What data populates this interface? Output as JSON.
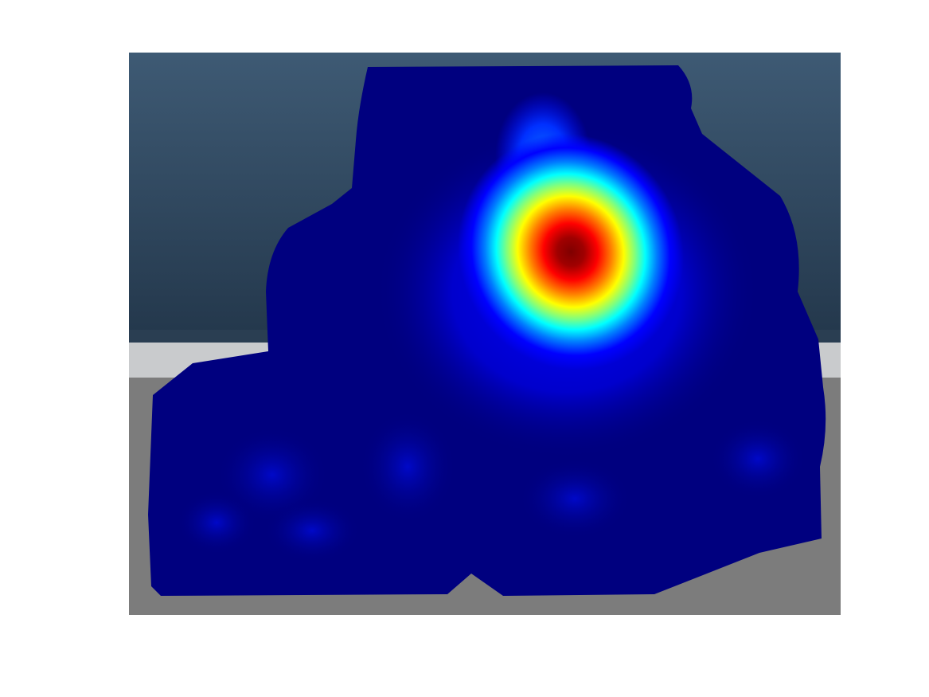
{
  "scene": {
    "background_top": "#3e5a74",
    "background_bottom": "#23374b",
    "floor_light": "#c9cbcd",
    "floor_gray": "#7c7c7c"
  },
  "heatmap": {
    "colormap": "jet",
    "colors": [
      "#00007f",
      "#0000ff",
      "#007fff",
      "#00ffff",
      "#7fff7f",
      "#ffff00",
      "#ff7f00",
      "#ff0000",
      "#7f0000"
    ]
  }
}
